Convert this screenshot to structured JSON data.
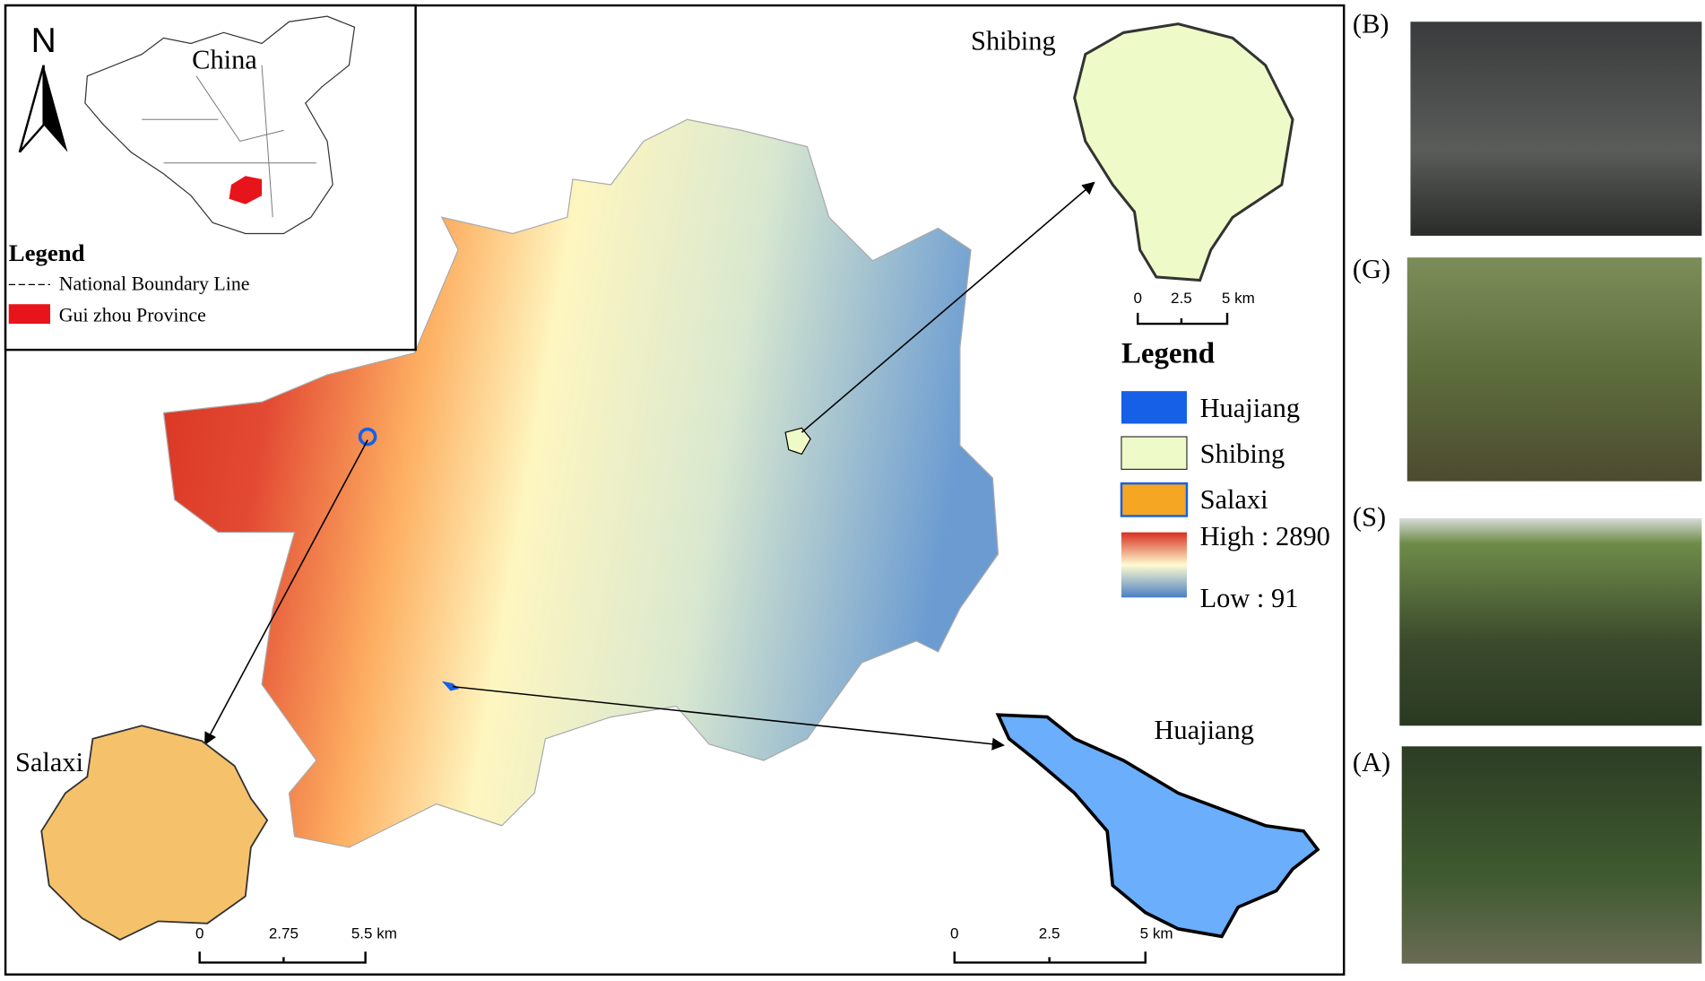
{
  "inset": {
    "north": "N",
    "country": "China",
    "legend_title": "Legend",
    "legend_items": [
      "National Boundary Line",
      "Gui zhou Province"
    ]
  },
  "main": {
    "legend_title": "Legend",
    "legend_items": [
      "Huajiang",
      "Shibing",
      "Salaxi"
    ],
    "high": "High : 2890",
    "low": "Low : 91"
  },
  "sites": [
    {
      "label": "Shibing",
      "scale": [
        "0",
        "2.5",
        "5 km"
      ]
    },
    {
      "label": "Salaxi",
      "scale": [
        "0",
        "2.75",
        "5.5 km"
      ]
    },
    {
      "label": "Huajiang",
      "scale": [
        "0",
        "2.5",
        "5 km"
      ]
    }
  ],
  "photos": [
    "(B)",
    "(G)",
    "(S)",
    "(A)"
  ]
}
